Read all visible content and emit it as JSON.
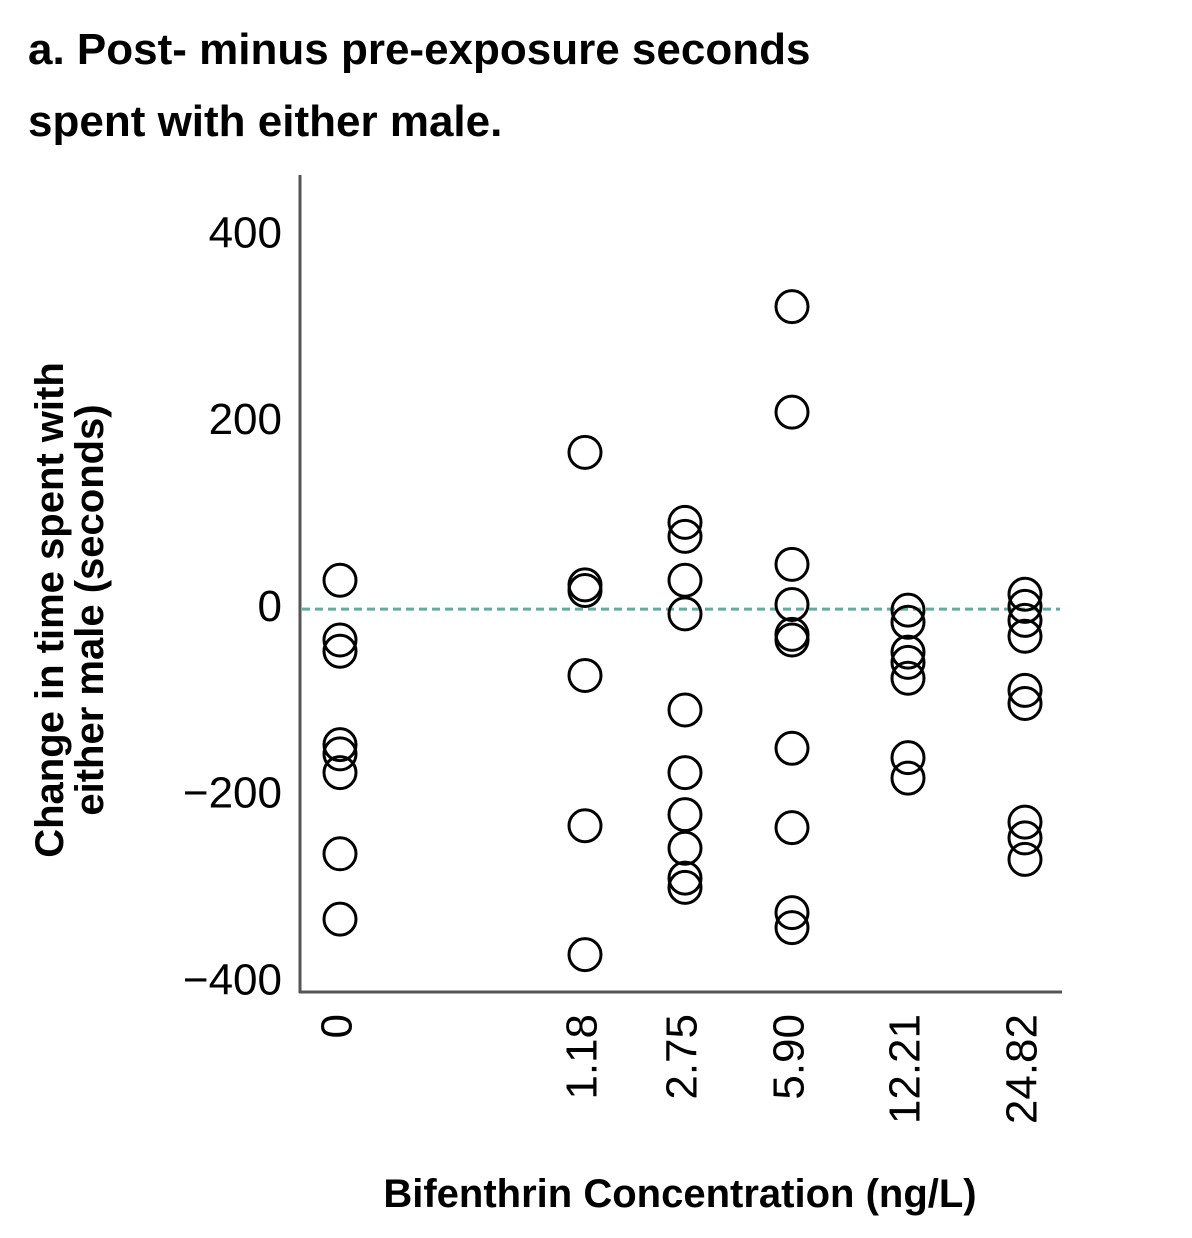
{
  "chart_data": {
    "type": "scatter",
    "title": "a. Post- minus pre-exposure seconds\nspent with either male.",
    "y_label": "Change in time spent with\neither male (seconds)",
    "x_label": "Bifenthrin Concentration (ng/L)",
    "categories": [
      "0",
      "1.18",
      "2.75",
      "5.90",
      "12.21",
      "24.82"
    ],
    "groups": [
      [
        31,
        -33,
        -45,
        -145,
        -155,
        -175,
        -262,
        -332
      ],
      [
        168,
        26,
        20,
        -71,
        -232,
        -370
      ],
      [
        93,
        78,
        31,
        -5,
        -108,
        -175,
        -220,
        -256,
        -288,
        -298
      ],
      [
        324,
        211,
        48,
        5,
        -27,
        -33,
        -149,
        -234,
        -325,
        -341
      ],
      [
        -1,
        -14,
        -46,
        -57,
        -74,
        -159,
        -181
      ],
      [
        16,
        3,
        -12,
        -29,
        -87,
        -101,
        -228,
        -245,
        -268
      ]
    ],
    "color": "#000000",
    "reference_line": 0,
    "reference_color": "#5fae9c",
    "ylim": [
      -410,
      465
    ],
    "yticks": [
      {
        "value": -400,
        "label": "−400"
      },
      {
        "value": -200,
        "label": "−200"
      },
      0,
      200,
      400
    ]
  }
}
